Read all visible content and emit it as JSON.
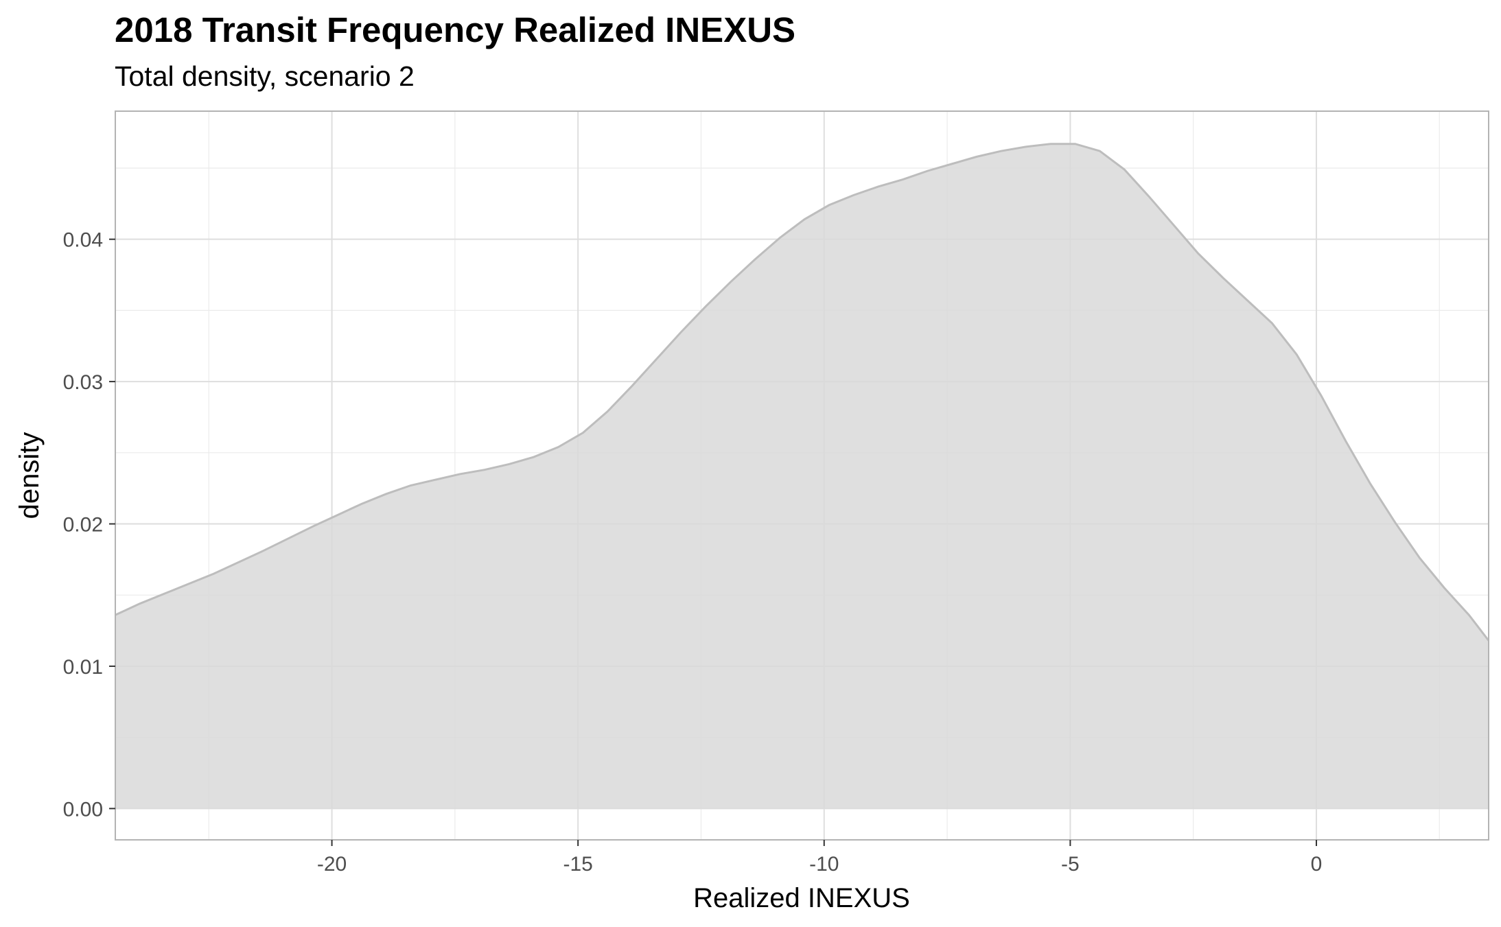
{
  "chart_data": {
    "type": "area",
    "title": "2018 Transit Frequency Realized INEXUS",
    "subtitle": "Total density, scenario 2",
    "xlabel": "Realized INEXUS",
    "ylabel": "density",
    "xlim": [
      -24.4,
      3.5
    ],
    "ylim": [
      -0.0022,
      0.049
    ],
    "x_ticks": [
      -20,
      -15,
      -10,
      -5,
      0
    ],
    "x_tick_labels": [
      "-20",
      "-15",
      "-10",
      "-5",
      "0"
    ],
    "y_ticks": [
      0.0,
      0.01,
      0.02,
      0.03,
      0.04
    ],
    "y_tick_labels": [
      "0.00",
      "0.01",
      "0.02",
      "0.03",
      "0.04"
    ],
    "grid": true,
    "fill_color": "#d9d9d9",
    "line_color": "#bdbdbd",
    "series": [
      {
        "x": [
          -24.4,
          -23.9,
          -23.4,
          -22.4,
          -21.4,
          -20.4,
          -19.9,
          -19.4,
          -18.9,
          -18.4,
          -17.9,
          -17.4,
          -16.9,
          -16.4,
          -15.9,
          -15.4,
          -14.9,
          -14.4,
          -13.9,
          -13.4,
          -12.9,
          -12.4,
          -11.9,
          -11.4,
          -10.9,
          -10.4,
          -9.9,
          -9.4,
          -8.9,
          -8.4,
          -7.9,
          -7.4,
          -6.9,
          -6.4,
          -5.9,
          -5.4,
          -4.9,
          -4.4,
          -3.9,
          -3.4,
          -2.9,
          -2.4,
          -1.9,
          -1.4,
          -0.9,
          -0.4,
          0.1,
          0.6,
          1.1,
          1.6,
          2.1,
          2.6,
          3.1,
          3.5
        ],
        "y": [
          0.0136,
          0.0144,
          0.0151,
          0.0165,
          0.0181,
          0.0198,
          0.0206,
          0.0214,
          0.0221,
          0.0227,
          0.0231,
          0.0235,
          0.0238,
          0.0242,
          0.0247,
          0.0254,
          0.0264,
          0.0279,
          0.0297,
          0.0316,
          0.0335,
          0.0353,
          0.037,
          0.0386,
          0.0401,
          0.0414,
          0.0424,
          0.0431,
          0.0437,
          0.0442,
          0.0448,
          0.0453,
          0.0458,
          0.0462,
          0.0465,
          0.0467,
          0.0467,
          0.0462,
          0.0449,
          0.043,
          0.041,
          0.039,
          0.0373,
          0.0357,
          0.0341,
          0.0319,
          0.029,
          0.0258,
          0.0228,
          0.0201,
          0.0176,
          0.0155,
          0.0136,
          0.0118
        ]
      }
    ]
  }
}
